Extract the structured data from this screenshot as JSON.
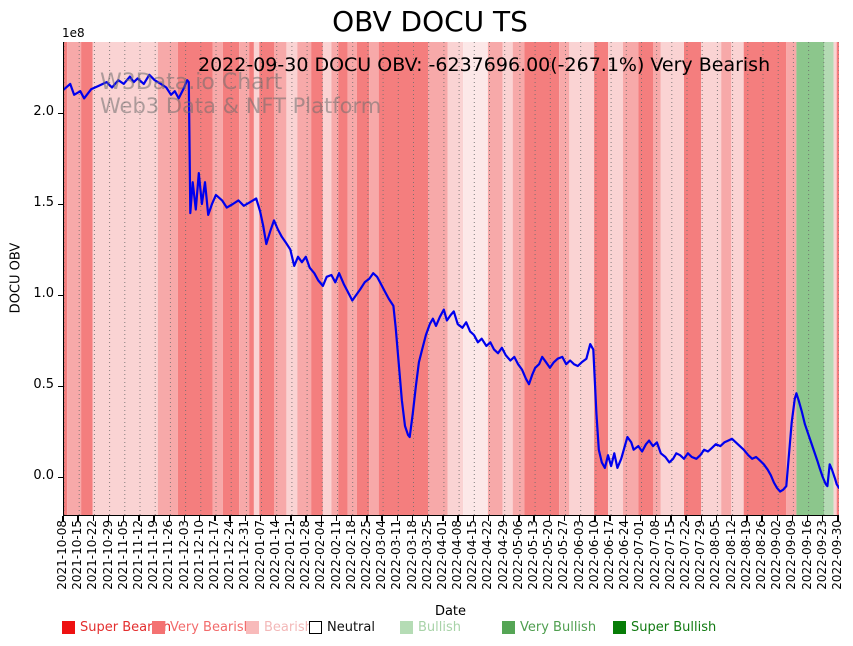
{
  "chart_data": {
    "type": "line",
    "title": "OBV DOCU TS",
    "annotation": "2022-09-30 DOCU OBV: -6237696.00(-267.1%) Very Bearish",
    "watermark": [
      "W3Data.io Chart",
      "Web3 Data & NFT Platform"
    ],
    "xlabel": "Date",
    "ylabel": "DOCU OBV",
    "y_scale_label": "1e8",
    "grid": true,
    "legend_position": "bottom",
    "y_ticks": [
      "0.0",
      "0.5",
      "1.0",
      "1.5",
      "2.0"
    ],
    "y_tick_values": [
      0.0,
      0.5,
      1.0,
      1.5,
      2.0
    ],
    "ylim": [
      -0.25,
      2.39
    ],
    "y_unit": "1e8",
    "x_tick_labels": [
      "2021-10-08",
      "2021-10-15",
      "2021-10-22",
      "2021-10-29",
      "2021-11-05",
      "2021-11-12",
      "2021-11-19",
      "2021-11-26",
      "2021-12-03",
      "2021-12-10",
      "2021-12-17",
      "2021-12-24",
      "2021-12-31",
      "2022-01-07",
      "2022-01-14",
      "2022-01-21",
      "2022-01-28",
      "2022-02-04",
      "2022-02-11",
      "2022-02-18",
      "2022-02-25",
      "2022-03-04",
      "2022-03-11",
      "2022-03-18",
      "2022-03-25",
      "2022-04-01",
      "2022-04-08",
      "2022-04-15",
      "2022-04-22",
      "2022-04-29",
      "2022-05-06",
      "2022-05-13",
      "2022-05-20",
      "2022-05-27",
      "2022-06-03",
      "2022-06-10",
      "2022-06-17",
      "2022-06-24",
      "2022-07-01",
      "2022-07-08",
      "2022-07-15",
      "2022-07-22",
      "2022-07-29",
      "2022-08-05",
      "2022-08-12",
      "2022-08-19",
      "2022-08-26",
      "2022-09-02",
      "2022-09-09",
      "2022-09-16",
      "2022-09-23",
      "2022-09-30"
    ],
    "series_name": "DOCU OBV",
    "line_color": "#0000ee",
    "points": [
      [
        0.0,
        2.13
      ],
      [
        0.008,
        2.16
      ],
      [
        0.013,
        2.1
      ],
      [
        0.021,
        2.12
      ],
      [
        0.026,
        2.08
      ],
      [
        0.035,
        2.13
      ],
      [
        0.045,
        2.15
      ],
      [
        0.055,
        2.17
      ],
      [
        0.062,
        2.14
      ],
      [
        0.07,
        2.18
      ],
      [
        0.077,
        2.16
      ],
      [
        0.085,
        2.2
      ],
      [
        0.09,
        2.17
      ],
      [
        0.095,
        2.19
      ],
      [
        0.103,
        2.16
      ],
      [
        0.11,
        2.21
      ],
      [
        0.117,
        2.18
      ],
      [
        0.125,
        2.16
      ],
      [
        0.132,
        2.14
      ],
      [
        0.138,
        2.1
      ],
      [
        0.143,
        2.12
      ],
      [
        0.148,
        2.08
      ],
      [
        0.154,
        2.13
      ],
      [
        0.159,
        2.18
      ],
      [
        0.161,
        2.17
      ],
      [
        0.163,
        1.45
      ],
      [
        0.166,
        1.62
      ],
      [
        0.17,
        1.47
      ],
      [
        0.174,
        1.67
      ],
      [
        0.178,
        1.5
      ],
      [
        0.182,
        1.62
      ],
      [
        0.186,
        1.44
      ],
      [
        0.191,
        1.5
      ],
      [
        0.196,
        1.55
      ],
      [
        0.204,
        1.52
      ],
      [
        0.21,
        1.48
      ],
      [
        0.218,
        1.5
      ],
      [
        0.225,
        1.52
      ],
      [
        0.232,
        1.49
      ],
      [
        0.24,
        1.51
      ],
      [
        0.248,
        1.53
      ],
      [
        0.253,
        1.46
      ],
      [
        0.257,
        1.38
      ],
      [
        0.261,
        1.28
      ],
      [
        0.266,
        1.35
      ],
      [
        0.271,
        1.41
      ],
      [
        0.276,
        1.36
      ],
      [
        0.281,
        1.32
      ],
      [
        0.286,
        1.29
      ],
      [
        0.292,
        1.25
      ],
      [
        0.297,
        1.16
      ],
      [
        0.302,
        1.21
      ],
      [
        0.307,
        1.18
      ],
      [
        0.312,
        1.21
      ],
      [
        0.317,
        1.15
      ],
      [
        0.323,
        1.12
      ],
      [
        0.328,
        1.08
      ],
      [
        0.334,
        1.05
      ],
      [
        0.339,
        1.1
      ],
      [
        0.345,
        1.11
      ],
      [
        0.35,
        1.07
      ],
      [
        0.355,
        1.12
      ],
      [
        0.361,
        1.06
      ],
      [
        0.366,
        1.02
      ],
      [
        0.372,
        0.97
      ],
      [
        0.377,
        1.0
      ],
      [
        0.382,
        1.03
      ],
      [
        0.388,
        1.07
      ],
      [
        0.394,
        1.09
      ],
      [
        0.399,
        1.12
      ],
      [
        0.404,
        1.1
      ],
      [
        0.409,
        1.06
      ],
      [
        0.414,
        1.02
      ],
      [
        0.419,
        0.98
      ],
      [
        0.425,
        0.94
      ],
      [
        0.428,
        0.82
      ],
      [
        0.432,
        0.62
      ],
      [
        0.436,
        0.42
      ],
      [
        0.44,
        0.28
      ],
      [
        0.444,
        0.23
      ],
      [
        0.446,
        0.22
      ],
      [
        0.45,
        0.35
      ],
      [
        0.454,
        0.5
      ],
      [
        0.458,
        0.63
      ],
      [
        0.462,
        0.7
      ],
      [
        0.467,
        0.78
      ],
      [
        0.472,
        0.84
      ],
      [
        0.476,
        0.87
      ],
      [
        0.48,
        0.83
      ],
      [
        0.485,
        0.88
      ],
      [
        0.49,
        0.92
      ],
      [
        0.494,
        0.86
      ],
      [
        0.499,
        0.89
      ],
      [
        0.503,
        0.91
      ],
      [
        0.508,
        0.84
      ],
      [
        0.514,
        0.82
      ],
      [
        0.519,
        0.85
      ],
      [
        0.524,
        0.8
      ],
      [
        0.529,
        0.78
      ],
      [
        0.534,
        0.74
      ],
      [
        0.539,
        0.76
      ],
      [
        0.545,
        0.72
      ],
      [
        0.55,
        0.74
      ],
      [
        0.555,
        0.7
      ],
      [
        0.56,
        0.68
      ],
      [
        0.565,
        0.71
      ],
      [
        0.57,
        0.67
      ],
      [
        0.576,
        0.64
      ],
      [
        0.581,
        0.66
      ],
      [
        0.586,
        0.62
      ],
      [
        0.591,
        0.59
      ],
      [
        0.596,
        0.54
      ],
      [
        0.6,
        0.51
      ],
      [
        0.604,
        0.56
      ],
      [
        0.608,
        0.6
      ],
      [
        0.613,
        0.62
      ],
      [
        0.617,
        0.66
      ],
      [
        0.622,
        0.63
      ],
      [
        0.627,
        0.6
      ],
      [
        0.632,
        0.63
      ],
      [
        0.637,
        0.65
      ],
      [
        0.643,
        0.66
      ],
      [
        0.648,
        0.62
      ],
      [
        0.653,
        0.64
      ],
      [
        0.658,
        0.62
      ],
      [
        0.663,
        0.61
      ],
      [
        0.668,
        0.63
      ],
      [
        0.674,
        0.65
      ],
      [
        0.679,
        0.73
      ],
      [
        0.683,
        0.7
      ],
      [
        0.687,
        0.35
      ],
      [
        0.69,
        0.15
      ],
      [
        0.694,
        0.08
      ],
      [
        0.698,
        0.05
      ],
      [
        0.702,
        0.12
      ],
      [
        0.706,
        0.06
      ],
      [
        0.71,
        0.13
      ],
      [
        0.714,
        0.05
      ],
      [
        0.719,
        0.1
      ],
      [
        0.723,
        0.16
      ],
      [
        0.727,
        0.22
      ],
      [
        0.732,
        0.19
      ],
      [
        0.735,
        0.15
      ],
      [
        0.741,
        0.17
      ],
      [
        0.746,
        0.14
      ],
      [
        0.751,
        0.18
      ],
      [
        0.755,
        0.2
      ],
      [
        0.76,
        0.17
      ],
      [
        0.765,
        0.19
      ],
      [
        0.77,
        0.13
      ],
      [
        0.776,
        0.11
      ],
      [
        0.781,
        0.08
      ],
      [
        0.786,
        0.1
      ],
      [
        0.79,
        0.13
      ],
      [
        0.795,
        0.12
      ],
      [
        0.8,
        0.1
      ],
      [
        0.805,
        0.13
      ],
      [
        0.81,
        0.11
      ],
      [
        0.816,
        0.1
      ],
      [
        0.821,
        0.12
      ],
      [
        0.826,
        0.15
      ],
      [
        0.831,
        0.14
      ],
      [
        0.836,
        0.16
      ],
      [
        0.841,
        0.18
      ],
      [
        0.847,
        0.17
      ],
      [
        0.852,
        0.19
      ],
      [
        0.857,
        0.2
      ],
      [
        0.862,
        0.21
      ],
      [
        0.867,
        0.19
      ],
      [
        0.872,
        0.17
      ],
      [
        0.877,
        0.15
      ],
      [
        0.883,
        0.12
      ],
      [
        0.888,
        0.1
      ],
      [
        0.893,
        0.11
      ],
      [
        0.898,
        0.09
      ],
      [
        0.903,
        0.07
      ],
      [
        0.908,
        0.04
      ],
      [
        0.912,
        0.01
      ],
      [
        0.916,
        -0.03
      ],
      [
        0.92,
        -0.06
      ],
      [
        0.924,
        -0.08
      ],
      [
        0.928,
        -0.07
      ],
      [
        0.932,
        -0.05
      ],
      [
        0.935,
        0.1
      ],
      [
        0.939,
        0.3
      ],
      [
        0.943,
        0.43
      ],
      [
        0.945,
        0.46
      ],
      [
        0.948,
        0.42
      ],
      [
        0.952,
        0.36
      ],
      [
        0.956,
        0.29
      ],
      [
        0.96,
        0.24
      ],
      [
        0.964,
        0.19
      ],
      [
        0.968,
        0.14
      ],
      [
        0.972,
        0.09
      ],
      [
        0.975,
        0.05
      ],
      [
        0.979,
        0.0
      ],
      [
        0.983,
        -0.04
      ],
      [
        0.985,
        -0.05
      ],
      [
        0.988,
        0.07
      ],
      [
        0.991,
        0.04
      ],
      [
        0.995,
        -0.01
      ],
      [
        0.997,
        -0.04
      ],
      [
        1.0,
        -0.06
      ]
    ],
    "band_colors": {
      "very_bearish": "#f47e7e",
      "bearish": "#f7a9a9",
      "bearish_light": "#fad3d3",
      "bearish_faint": "#fce8e8",
      "very_bullish": "#8cc68c",
      "bullish": "#b4dab4"
    },
    "bands": [
      [
        0.0,
        0.004,
        "very_bearish"
      ],
      [
        0.004,
        0.022,
        "bearish"
      ],
      [
        0.022,
        0.037,
        "very_bearish"
      ],
      [
        0.037,
        0.121,
        "bearish_light"
      ],
      [
        0.121,
        0.147,
        "bearish"
      ],
      [
        0.147,
        0.192,
        "very_bearish"
      ],
      [
        0.192,
        0.205,
        "bearish"
      ],
      [
        0.205,
        0.226,
        "very_bearish"
      ],
      [
        0.226,
        0.239,
        "bearish"
      ],
      [
        0.239,
        0.245,
        "very_bearish"
      ],
      [
        0.245,
        0.252,
        "bearish_light"
      ],
      [
        0.252,
        0.271,
        "very_bearish"
      ],
      [
        0.271,
        0.287,
        "bearish"
      ],
      [
        0.287,
        0.301,
        "bearish_light"
      ],
      [
        0.301,
        0.319,
        "bearish"
      ],
      [
        0.319,
        0.334,
        "very_bearish"
      ],
      [
        0.334,
        0.345,
        "bearish_light"
      ],
      [
        0.345,
        0.354,
        "bearish"
      ],
      [
        0.354,
        0.366,
        "very_bearish"
      ],
      [
        0.366,
        0.378,
        "bearish"
      ],
      [
        0.378,
        0.394,
        "very_bearish"
      ],
      [
        0.394,
        0.406,
        "bearish"
      ],
      [
        0.406,
        0.47,
        "very_bearish"
      ],
      [
        0.47,
        0.495,
        "bearish"
      ],
      [
        0.495,
        0.515,
        "bearish_light"
      ],
      [
        0.515,
        0.547,
        "bearish_faint"
      ],
      [
        0.547,
        0.566,
        "bearish"
      ],
      [
        0.566,
        0.579,
        "bearish_light"
      ],
      [
        0.579,
        0.594,
        "bearish"
      ],
      [
        0.594,
        0.639,
        "very_bearish"
      ],
      [
        0.639,
        0.652,
        "bearish"
      ],
      [
        0.652,
        0.684,
        "bearish_light"
      ],
      [
        0.684,
        0.702,
        "very_bearish"
      ],
      [
        0.702,
        0.721,
        "bearish_light"
      ],
      [
        0.721,
        0.741,
        "bearish"
      ],
      [
        0.741,
        0.76,
        "very_bearish"
      ],
      [
        0.76,
        0.77,
        "bearish"
      ],
      [
        0.77,
        0.8,
        "bearish_light"
      ],
      [
        0.8,
        0.822,
        "very_bearish"
      ],
      [
        0.822,
        0.848,
        "bearish_light"
      ],
      [
        0.848,
        0.861,
        "bearish"
      ],
      [
        0.861,
        0.877,
        "bearish_light"
      ],
      [
        0.877,
        0.932,
        "very_bearish"
      ],
      [
        0.932,
        0.945,
        "bearish"
      ],
      [
        0.945,
        0.981,
        "very_bullish"
      ],
      [
        0.981,
        0.993,
        "bullish"
      ],
      [
        0.993,
        0.997,
        "bearish_light"
      ],
      [
        0.997,
        1.0,
        "very_bearish"
      ]
    ],
    "legend": [
      {
        "label": "Super Bearish",
        "swatch": "#ee1111",
        "text_color": "#e32e2e",
        "border": false
      },
      {
        "label": "Very Bearish",
        "swatch": "#f47272",
        "text_color": "#f26b6b",
        "border": false
      },
      {
        "label": "Bearish",
        "swatch": "#f8baba",
        "text_color": "#f3b8b8",
        "border": false
      },
      {
        "label": "Neutral",
        "swatch": "#ffffff",
        "text_color": "#111111",
        "border": true
      },
      {
        "label": "Bullish",
        "swatch": "#b5dcb5",
        "text_color": "#a8d3a8",
        "border": false
      },
      {
        "label": "Very Bullish",
        "swatch": "#55a555",
        "text_color": "#4f9e4f",
        "border": false
      },
      {
        "label": "Super Bullish",
        "swatch": "#077d07",
        "text_color": "#127a12",
        "border": false
      }
    ]
  }
}
